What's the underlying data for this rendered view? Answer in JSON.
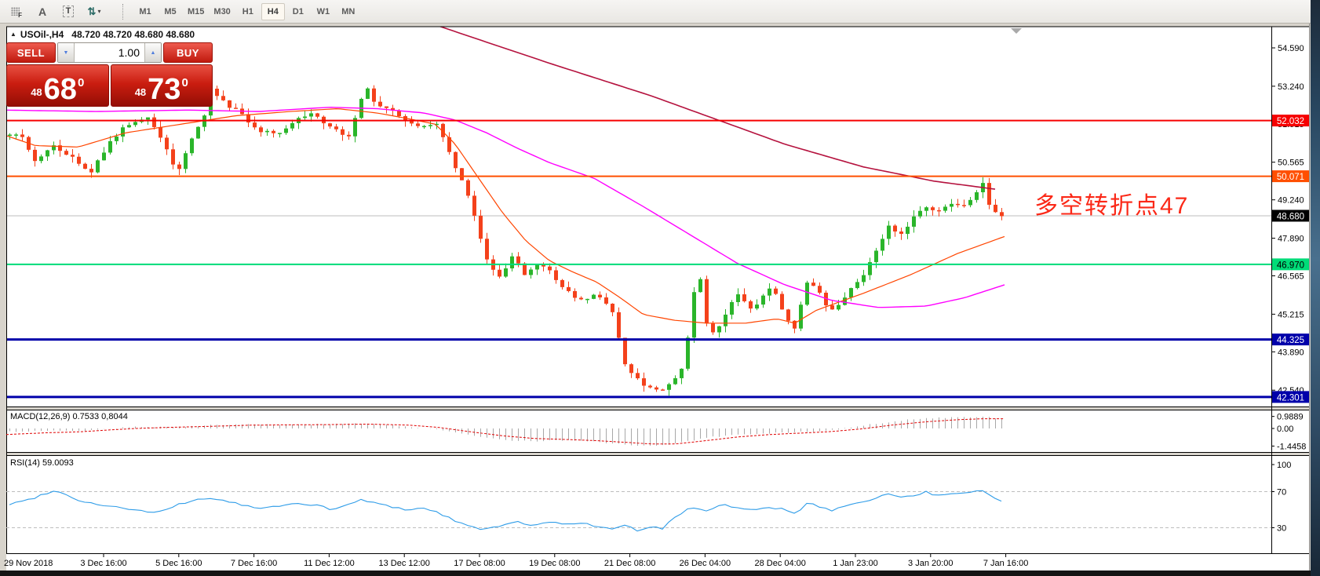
{
  "toolbar": {
    "icon_f_label": "F",
    "icon_a_label": "A",
    "icon_t_label": "T",
    "timeframes": [
      "M1",
      "M5",
      "M15",
      "M30",
      "H1",
      "H4",
      "D1",
      "W1",
      "MN"
    ],
    "active_timeframe": "H4"
  },
  "title": {
    "marker": "▲",
    "symbol": "USOil-,H4",
    "ohlc": "48.720 48.720 48.680 48.680"
  },
  "quote": {
    "sell_label": "SELL",
    "buy_label": "BUY",
    "volume": "1.00",
    "sell": {
      "small": "48",
      "big": "68",
      "sup": "0"
    },
    "buy": {
      "small": "48",
      "big": "73",
      "sup": "0"
    }
  },
  "annotation": {
    "text": "多空转折点47",
    "color": "#fb2817"
  },
  "price_scale": {
    "ticks": [
      "54.590",
      "53.240",
      "51.915",
      "50.565",
      "49.240",
      "47.890",
      "46.565",
      "45.215",
      "43.890",
      "42.540"
    ],
    "tick_values": [
      54.59,
      53.24,
      51.915,
      50.565,
      49.24,
      47.89,
      46.565,
      45.215,
      43.89,
      42.54
    ]
  },
  "hlines": [
    {
      "label": "52.032",
      "value": 52.032,
      "color": "#f60000",
      "text": "#ffffff",
      "width": 2
    },
    {
      "label": "50.071",
      "value": 50.071,
      "color": "#ff4f00",
      "text": "#ffffff",
      "width": 2
    },
    {
      "label": "46.970",
      "value": 46.97,
      "color": "#00dc78",
      "text": "#000000",
      "width": 2
    },
    {
      "label": "44.325",
      "value": 44.325,
      "color": "#0000aa",
      "text": "#ffffff",
      "width": 3
    },
    {
      "label": "42.301",
      "value": 42.301,
      "color": "#0000aa",
      "text": "#ffffff",
      "width": 3
    }
  ],
  "current_price": {
    "label": "48.680",
    "value": 48.68,
    "line_color": "#bdbdbd",
    "badge_bg": "#000000",
    "text": "#ffffff"
  },
  "x_axis": {
    "labels": [
      "29 Nov 2018",
      "3 Dec 16:00",
      "5 Dec 16:00",
      "7 Dec 16:00",
      "11 Dec 12:00",
      "13 Dec 12:00",
      "17 Dec 08:00",
      "19 Dec 08:00",
      "21 Dec 08:00",
      "26 Dec 04:00",
      "28 Dec 04:00",
      "1 Jan 23:00",
      "3 Jan 20:00",
      "7 Jan 16:00"
    ]
  },
  "series": {
    "bull_color": "#2ab52a",
    "bear_color": "#f4411b",
    "close_anchors": [
      [
        8,
        51.6
      ],
      [
        30,
        51.4
      ],
      [
        45,
        50.5
      ],
      [
        68,
        51.2
      ],
      [
        98,
        50.6
      ],
      [
        113,
        50.1
      ],
      [
        136,
        51.1
      ],
      [
        160,
        51.9
      ],
      [
        188,
        52.1
      ],
      [
        210,
        51.1
      ],
      [
        226,
        50.1
      ],
      [
        241,
        51.3
      ],
      [
        258,
        52.0
      ],
      [
        270,
        53.3
      ],
      [
        278,
        52.8
      ],
      [
        300,
        52.4
      ],
      [
        331,
        51.7
      ],
      [
        353,
        51.5
      ],
      [
        376,
        52.0
      ],
      [
        398,
        52.3
      ],
      [
        421,
        51.8
      ],
      [
        443,
        51.4
      ],
      [
        458,
        52.6
      ],
      [
        466,
        53.2
      ],
      [
        481,
        52.5
      ],
      [
        496,
        52.4
      ],
      [
        518,
        51.9
      ],
      [
        541,
        51.8
      ],
      [
        556,
        51.9
      ],
      [
        571,
        51.0
      ],
      [
        593,
        49.6
      ],
      [
        608,
        48.3
      ],
      [
        623,
        46.9
      ],
      [
        638,
        46.4
      ],
      [
        653,
        47.3
      ],
      [
        668,
        46.6
      ],
      [
        690,
        47.0
      ],
      [
        713,
        46.3
      ],
      [
        736,
        45.6
      ],
      [
        758,
        46.0
      ],
      [
        781,
        45.3
      ],
      [
        796,
        43.4
      ],
      [
        811,
        42.9
      ],
      [
        826,
        42.6
      ],
      [
        841,
        42.45
      ],
      [
        856,
        42.8
      ],
      [
        871,
        43.4
      ],
      [
        886,
        46.3
      ],
      [
        894,
        46.5
      ],
      [
        901,
        44.6
      ],
      [
        915,
        44.7
      ],
      [
        938,
        45.9
      ],
      [
        960,
        45.4
      ],
      [
        983,
        46.3
      ],
      [
        998,
        45.3
      ],
      [
        1013,
        44.7
      ],
      [
        1028,
        46.4
      ],
      [
        1043,
        46.0
      ],
      [
        1058,
        45.3
      ],
      [
        1073,
        45.7
      ],
      [
        1088,
        46.2
      ],
      [
        1103,
        46.7
      ],
      [
        1118,
        47.6
      ],
      [
        1133,
        48.3
      ],
      [
        1148,
        48.0
      ],
      [
        1163,
        48.6
      ],
      [
        1178,
        49.0
      ],
      [
        1193,
        48.7
      ],
      [
        1208,
        49.2
      ],
      [
        1223,
        49.0
      ],
      [
        1238,
        49.3
      ],
      [
        1253,
        49.85
      ],
      [
        1261,
        48.9
      ],
      [
        1269,
        48.75
      ],
      [
        1280,
        48.68
      ]
    ],
    "ma_fast": {
      "color": "#ff4500",
      "anchors": [
        [
          8,
          51.5
        ],
        [
          45,
          51.15
        ],
        [
          100,
          51.1
        ],
        [
          160,
          51.6
        ],
        [
          230,
          51.9
        ],
        [
          300,
          52.2
        ],
        [
          370,
          52.35
        ],
        [
          430,
          52.45
        ],
        [
          480,
          52.3
        ],
        [
          520,
          52.1
        ],
        [
          555,
          51.9
        ],
        [
          580,
          51.2
        ],
        [
          610,
          50.0
        ],
        [
          640,
          48.8
        ],
        [
          670,
          47.8
        ],
        [
          700,
          47.1
        ],
        [
          730,
          46.7
        ],
        [
          760,
          46.35
        ],
        [
          790,
          45.8
        ],
        [
          820,
          45.2
        ],
        [
          860,
          45.0
        ],
        [
          900,
          44.9
        ],
        [
          950,
          44.9
        ],
        [
          990,
          45.05
        ],
        [
          1013,
          44.9
        ],
        [
          1040,
          45.35
        ],
        [
          1100,
          45.95
        ],
        [
          1160,
          46.6
        ],
        [
          1220,
          47.35
        ],
        [
          1280,
          47.95
        ]
      ]
    },
    "ma_mid": {
      "color": "#ff00ff",
      "anchors": [
        [
          8,
          52.4
        ],
        [
          120,
          52.35
        ],
        [
          240,
          52.4
        ],
        [
          330,
          52.35
        ],
        [
          420,
          52.5
        ],
        [
          480,
          52.45
        ],
        [
          540,
          52.3
        ],
        [
          580,
          52.05
        ],
        [
          620,
          51.6
        ],
        [
          660,
          51.05
        ],
        [
          700,
          50.55
        ],
        [
          757,
          50.0
        ],
        [
          820,
          49.0
        ],
        [
          880,
          48.0
        ],
        [
          940,
          47.0
        ],
        [
          1000,
          46.25
        ],
        [
          1060,
          45.7
        ],
        [
          1120,
          45.45
        ],
        [
          1180,
          45.5
        ],
        [
          1230,
          45.8
        ],
        [
          1280,
          46.25
        ]
      ]
    },
    "ma_slow": {
      "color": "#b5123e",
      "anchors": [
        [
          560,
          55.35
        ],
        [
          700,
          54.05
        ],
        [
          830,
          52.9
        ],
        [
          1000,
          51.2
        ],
        [
          1100,
          50.4
        ],
        [
          1190,
          49.9
        ],
        [
          1272,
          49.6
        ]
      ]
    }
  },
  "macd": {
    "label": "MACD(12,26,9) 0.7533 0,8044",
    "ticks": [
      "0.9889",
      "0.00",
      "-1.4458"
    ],
    "tick_values": [
      0.9889,
      0,
      -1.4458
    ],
    "hist_color": "#a8a8a8",
    "signal_color": "#e00000",
    "hist_anchors": [
      [
        8,
        -0.25
      ],
      [
        60,
        -0.18
      ],
      [
        100,
        -0.22
      ],
      [
        140,
        -0.02
      ],
      [
        180,
        0.15
      ],
      [
        220,
        0.1
      ],
      [
        270,
        0.3
      ],
      [
        320,
        0.35
      ],
      [
        370,
        0.28
      ],
      [
        420,
        0.35
      ],
      [
        470,
        0.42
      ],
      [
        520,
        0.15
      ],
      [
        560,
        -0.1
      ],
      [
        600,
        -0.6
      ],
      [
        640,
        -0.95
      ],
      [
        680,
        -1.05
      ],
      [
        720,
        -0.95
      ],
      [
        760,
        -1.1
      ],
      [
        800,
        -1.35
      ],
      [
        830,
        -1.45
      ],
      [
        860,
        -1.25
      ],
      [
        900,
        -0.75
      ],
      [
        940,
        -0.5
      ],
      [
        980,
        -0.38
      ],
      [
        1020,
        -0.3
      ],
      [
        1060,
        -0.12
      ],
      [
        1100,
        0.25
      ],
      [
        1140,
        0.6
      ],
      [
        1180,
        0.85
      ],
      [
        1220,
        0.92
      ],
      [
        1255,
        1.0
      ],
      [
        1280,
        0.75
      ]
    ],
    "signal_anchors": [
      [
        8,
        -0.5
      ],
      [
        60,
        -0.35
      ],
      [
        100,
        -0.28
      ],
      [
        140,
        -0.12
      ],
      [
        180,
        0.02
      ],
      [
        220,
        0.1
      ],
      [
        270,
        0.18
      ],
      [
        320,
        0.27
      ],
      [
        370,
        0.3
      ],
      [
        420,
        0.32
      ],
      [
        470,
        0.36
      ],
      [
        520,
        0.28
      ],
      [
        560,
        0.08
      ],
      [
        600,
        -0.28
      ],
      [
        640,
        -0.6
      ],
      [
        680,
        -0.82
      ],
      [
        720,
        -0.9
      ],
      [
        760,
        -1.0
      ],
      [
        800,
        -1.15
      ],
      [
        830,
        -1.28
      ],
      [
        860,
        -1.28
      ],
      [
        900,
        -1.0
      ],
      [
        940,
        -0.7
      ],
      [
        980,
        -0.5
      ],
      [
        1020,
        -0.38
      ],
      [
        1060,
        -0.25
      ],
      [
        1100,
        -0.02
      ],
      [
        1140,
        0.3
      ],
      [
        1180,
        0.55
      ],
      [
        1220,
        0.72
      ],
      [
        1255,
        0.8
      ],
      [
        1280,
        0.8
      ]
    ]
  },
  "rsi": {
    "label": "RSI(14) 59.0093",
    "ticks": [
      "100",
      "70",
      "30"
    ],
    "tick_values": [
      100,
      70,
      30
    ],
    "levels": [
      70,
      30
    ],
    "line_color": "#2e9ce8",
    "anchors": [
      [
        8,
        55
      ],
      [
        40,
        62
      ],
      [
        70,
        72
      ],
      [
        90,
        64
      ],
      [
        110,
        58
      ],
      [
        140,
        54
      ],
      [
        170,
        50
      ],
      [
        200,
        46
      ],
      [
        225,
        55
      ],
      [
        250,
        61
      ],
      [
        270,
        63
      ],
      [
        300,
        57
      ],
      [
        330,
        51
      ],
      [
        355,
        54
      ],
      [
        380,
        57
      ],
      [
        405,
        55
      ],
      [
        420,
        50
      ],
      [
        440,
        54
      ],
      [
        460,
        61
      ],
      [
        480,
        57
      ],
      [
        500,
        53
      ],
      [
        520,
        50
      ],
      [
        540,
        52
      ],
      [
        560,
        46
      ],
      [
        580,
        38
      ],
      [
        600,
        31
      ],
      [
        620,
        28
      ],
      [
        640,
        33
      ],
      [
        660,
        36
      ],
      [
        680,
        33
      ],
      [
        700,
        36
      ],
      [
        720,
        34
      ],
      [
        740,
        36
      ],
      [
        760,
        31
      ],
      [
        780,
        28
      ],
      [
        800,
        33
      ],
      [
        815,
        26
      ],
      [
        830,
        31
      ],
      [
        845,
        29
      ],
      [
        860,
        42
      ],
      [
        880,
        53
      ],
      [
        900,
        49
      ],
      [
        920,
        56
      ],
      [
        940,
        52
      ],
      [
        960,
        49
      ],
      [
        980,
        53
      ],
      [
        1000,
        50
      ],
      [
        1015,
        45
      ],
      [
        1030,
        58
      ],
      [
        1045,
        53
      ],
      [
        1060,
        49
      ],
      [
        1075,
        53
      ],
      [
        1090,
        56
      ],
      [
        1105,
        60
      ],
      [
        1120,
        64
      ],
      [
        1135,
        68
      ],
      [
        1150,
        63
      ],
      [
        1165,
        66
      ],
      [
        1180,
        70
      ],
      [
        1195,
        65
      ],
      [
        1210,
        68
      ],
      [
        1225,
        67
      ],
      [
        1240,
        69
      ],
      [
        1255,
        72
      ],
      [
        1262,
        66
      ],
      [
        1270,
        62
      ],
      [
        1280,
        59
      ]
    ]
  }
}
